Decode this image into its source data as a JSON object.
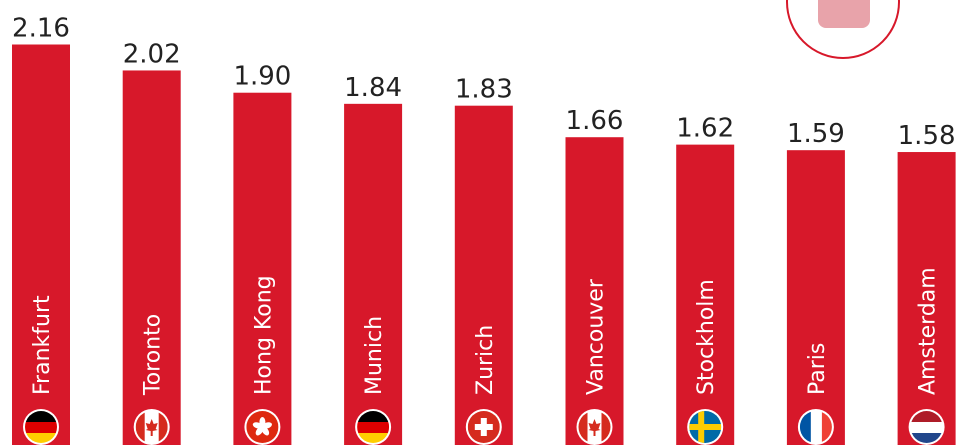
{
  "chart_data": {
    "type": "bar",
    "categories": [
      "Frankfurt",
      "Toronto",
      "Hong Kong",
      "Munich",
      "Zurich",
      "Vancouver",
      "Stockholm",
      "Paris",
      "Amsterdam"
    ],
    "values": [
      2.16,
      2.02,
      1.9,
      1.84,
      1.83,
      1.66,
      1.62,
      1.59,
      1.58
    ],
    "value_labels": [
      "2.16",
      "2.02",
      "1.90",
      "1.84",
      "1.83",
      "1.66",
      "1.62",
      "1.59",
      "1.58"
    ],
    "color": "#d7182a",
    "ylim": [
      0,
      2.4
    ]
  }
}
